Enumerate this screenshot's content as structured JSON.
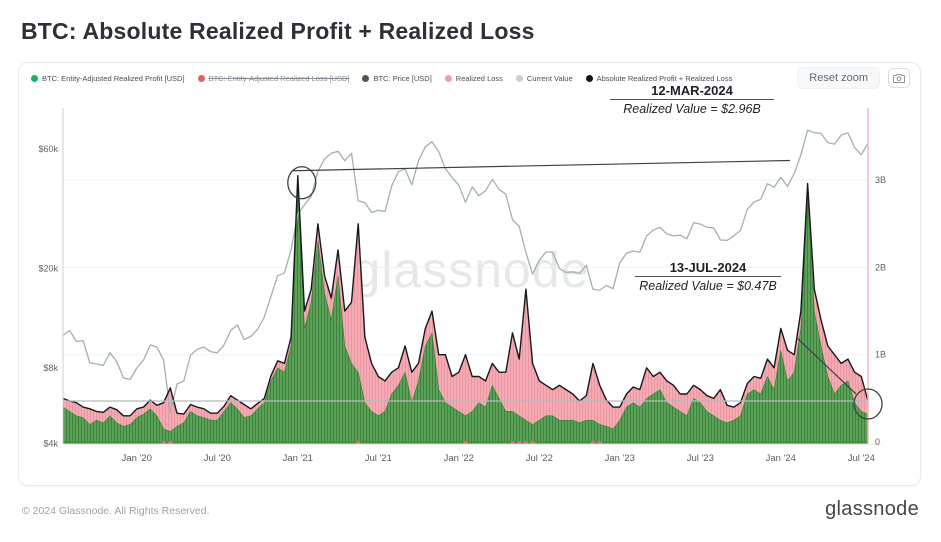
{
  "page": {
    "title": "BTC: Absolute Realized Profit + Realized Loss"
  },
  "toolbar": {
    "reset_zoom_label": "Reset zoom",
    "camera_icon": "camera"
  },
  "legend": {
    "items": [
      {
        "label": "BTC: Entity-Adjusted Realized Profit [USD]",
        "color": "#16b364",
        "strike": false
      },
      {
        "label": "BTC: Entity-Adjusted Realized Loss [USD]",
        "color": "#e06060",
        "strike": true
      },
      {
        "label": "BTC: Price [USD]",
        "color": "#4b5563",
        "strike": false
      },
      {
        "label": "Realized Loss",
        "color": "#f29baa",
        "strike": false
      },
      {
        "label": "Current Value",
        "color": "#c9ced1",
        "strike": false
      },
      {
        "label": "Absolute Realized Profit + Realized Loss",
        "color": "#111418",
        "strike": false
      }
    ]
  },
  "axes": {
    "left": {
      "scale": "log",
      "labels": [
        "$60k",
        "$20k",
        "$8k",
        "$4k"
      ],
      "values_kusd": [
        60,
        20,
        8,
        4
      ]
    },
    "right": {
      "scale": "linear",
      "labels": [
        "3B",
        "2B",
        "1B",
        "0"
      ],
      "values_busd": [
        3,
        2,
        1,
        0
      ]
    },
    "x": {
      "labels": [
        "Jan '20",
        "Jul '20",
        "Jan '21",
        "Jul '21",
        "Jan '22",
        "Jul '22",
        "Jan '23",
        "Jul '23",
        "Jan '24",
        "Jul '24"
      ],
      "month_offsets": [
        5.5,
        11.5,
        17.5,
        23.5,
        29.5,
        35.5,
        41.5,
        47.5,
        53.5,
        59.5
      ]
    }
  },
  "watermark": "glassnode",
  "footer": {
    "copyright": "© 2024 Glassnode. All Rights Reserved.",
    "logo": "glassnode"
  },
  "chart_data": {
    "type": "mixed",
    "title": "BTC: Absolute Realized Profit + Realized Loss",
    "x_start": "mid-Jul 2019",
    "x_end": "mid-Jul 2024",
    "points_per_month": 2,
    "left_axis": {
      "unit": "BTC price USD (log scale)",
      "ticks_k": [
        4,
        8,
        20,
        60
      ]
    },
    "right_axis": {
      "unit": "USD billions",
      "range": [
        0,
        3.8
      ],
      "gridlines": [
        1,
        2,
        3
      ]
    },
    "legend_position": "top",
    "grid": "horizontal-faint",
    "current_value_b": 0.47,
    "annotations": [
      {
        "date": "12-MAR-2024",
        "text": "Realized Value = $2.96B",
        "value_b": 2.96
      },
      {
        "date": "13-JUL-2024",
        "text": "Realized Value = $0.47B",
        "value_b": 0.47
      }
    ],
    "series": [
      {
        "name": "BTC: Price [USD]",
        "role": "price",
        "type": "line",
        "axis": "left",
        "unit": "kUSD",
        "color": "#a0b1b0",
        "values": [
          10.8,
          11.3,
          10.2,
          10.3,
          8.4,
          8.3,
          8.2,
          9.2,
          8.5,
          7.3,
          7.2,
          8.0,
          8.6,
          9.9,
          9.7,
          8.6,
          5.3,
          6.9,
          7.1,
          9.0,
          9.5,
          9.7,
          9.3,
          9.2,
          9.9,
          11.3,
          11.9,
          10.4,
          10.7,
          11.4,
          12.8,
          15.5,
          18.7,
          19.2,
          23.8,
          33.0,
          36.0,
          38.9,
          48.9,
          54.9,
          57.8,
          58.9,
          54.0,
          57.8,
          37.3,
          36.7,
          33.5,
          34.2,
          33.8,
          42.8,
          48.8,
          50.0,
          43.2,
          54.0,
          61.3,
          64.3,
          58.7,
          50.1,
          46.3,
          43.1,
          36.8,
          42.4,
          39.1,
          41.0,
          45.5,
          41.5,
          39.7,
          31.3,
          29.5,
          23.2,
          19.0,
          21.6,
          23.3,
          23.2,
          20.0,
          19.3,
          19.4,
          19.1,
          20.6,
          16.5,
          16.4,
          17.1,
          16.6,
          21.1,
          23.0,
          23.5,
          23.2,
          27.0,
          28.5,
          29.2,
          27.5,
          27.0,
          27.2,
          26.3,
          30.5,
          30.1,
          29.2,
          29.1,
          26.0,
          25.9,
          27.0,
          28.4,
          34.5,
          36.9,
          37.8,
          43.7,
          42.3,
          46.3,
          42.6,
          48.0,
          57.0,
          71.5,
          69.9,
          69.4,
          63.8,
          62.9,
          68.3,
          69.8,
          61.0,
          57.0,
          63.5
        ]
      },
      {
        "name": "BTC: Entity-Adjusted Realized Profit [USD]",
        "role": "profit",
        "type": "area",
        "axis": "right",
        "unit": "B USD",
        "color": "#57a156",
        "values": [
          0.4,
          0.35,
          0.3,
          0.28,
          0.2,
          0.25,
          0.22,
          0.3,
          0.22,
          0.18,
          0.2,
          0.28,
          0.32,
          0.38,
          0.3,
          0.15,
          0.12,
          0.18,
          0.22,
          0.35,
          0.3,
          0.28,
          0.25,
          0.25,
          0.35,
          0.45,
          0.38,
          0.28,
          0.3,
          0.38,
          0.45,
          0.7,
          0.85,
          0.8,
          1.1,
          2.9,
          1.3,
          1.6,
          2.3,
          1.7,
          1.4,
          1.9,
          1.1,
          0.9,
          0.8,
          0.45,
          0.35,
          0.3,
          0.35,
          0.55,
          0.65,
          0.8,
          0.45,
          0.7,
          1.1,
          1.25,
          0.6,
          0.45,
          0.4,
          0.35,
          0.3,
          0.35,
          0.45,
          0.4,
          0.65,
          0.5,
          0.35,
          0.35,
          0.3,
          0.25,
          0.2,
          0.25,
          0.3,
          0.3,
          0.25,
          0.25,
          0.25,
          0.22,
          0.25,
          0.25,
          0.2,
          0.18,
          0.15,
          0.25,
          0.4,
          0.45,
          0.4,
          0.5,
          0.55,
          0.6,
          0.45,
          0.4,
          0.35,
          0.3,
          0.5,
          0.45,
          0.35,
          0.3,
          0.25,
          0.22,
          0.25,
          0.3,
          0.55,
          0.6,
          0.55,
          0.75,
          0.6,
          1.05,
          0.7,
          0.8,
          1.3,
          2.81,
          1.5,
          1.1,
          0.75,
          0.55,
          0.65,
          0.7,
          0.45,
          0.35,
          0.32
        ]
      },
      {
        "name": "Realized Loss",
        "role": "loss",
        "type": "area",
        "axis": "right",
        "unit": "B USD",
        "color": "#f3a9b0",
        "values": [
          0.1,
          0.12,
          0.15,
          0.12,
          0.18,
          0.1,
          0.12,
          0.1,
          0.15,
          0.12,
          0.1,
          0.1,
          0.08,
          0.1,
          0.12,
          0.3,
          0.5,
          0.15,
          0.1,
          0.08,
          0.1,
          0.1,
          0.08,
          0.08,
          0.06,
          0.08,
          0.1,
          0.15,
          0.08,
          0.06,
          0.05,
          0.06,
          0.08,
          0.1,
          0.1,
          0.15,
          0.2,
          0.15,
          0.2,
          0.2,
          0.25,
          0.3,
          0.4,
          0.7,
          1.7,
          0.75,
          0.55,
          0.45,
          0.35,
          0.25,
          0.2,
          0.3,
          0.35,
          0.2,
          0.2,
          0.25,
          0.4,
          0.55,
          0.35,
          0.45,
          0.7,
          0.4,
          0.3,
          0.3,
          0.25,
          0.3,
          0.45,
          0.9,
          0.65,
          1.5,
          0.7,
          0.45,
          0.35,
          0.3,
          0.4,
          0.35,
          0.3,
          0.25,
          0.28,
          0.65,
          0.45,
          0.3,
          0.25,
          0.15,
          0.15,
          0.18,
          0.2,
          0.35,
          0.2,
          0.2,
          0.25,
          0.25,
          0.2,
          0.25,
          0.15,
          0.15,
          0.18,
          0.2,
          0.35,
          0.2,
          0.15,
          0.15,
          0.12,
          0.15,
          0.18,
          0.2,
          0.25,
          0.25,
          0.35,
          0.2,
          0.2,
          0.15,
          0.25,
          0.3,
          0.35,
          0.45,
          0.25,
          0.25,
          0.35,
          0.4,
          0.15
        ]
      },
      {
        "name": "Absolute Realized Profit + Realized Loss",
        "role": "total",
        "type": "line",
        "axis": "right",
        "unit": "B USD",
        "color": "#15191c",
        "derived": "profit + loss"
      }
    ]
  }
}
